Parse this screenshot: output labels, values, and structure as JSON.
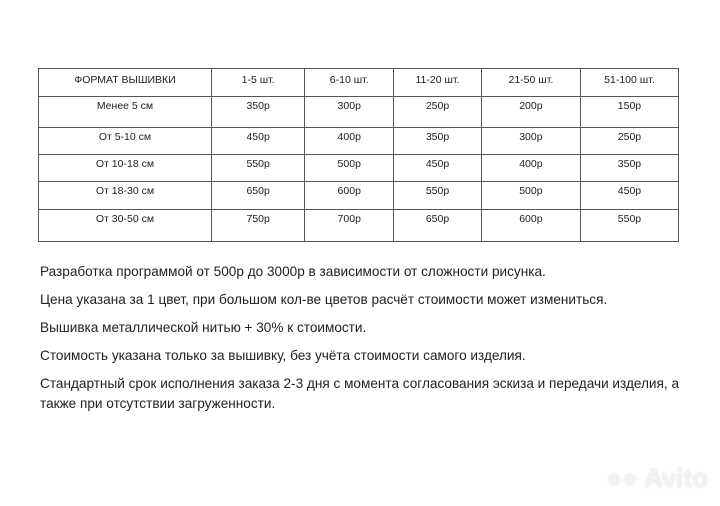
{
  "table": {
    "headers": [
      "ФОРМАТ ВЫШИВКИ",
      "1-5 шт.",
      "6-10 шт.",
      "11-20 шт.",
      "21-50 шт.",
      "51-100 шт."
    ],
    "rows": [
      [
        "Менее 5 см",
        "350р",
        "300р",
        "250р",
        "200р",
        "150р"
      ],
      [
        "От 5-10 см",
        "450р",
        "400р",
        "350р",
        "300р",
        "250р"
      ],
      [
        "От 10-18 см",
        "550р",
        "500р",
        "450р",
        "400р",
        "350р"
      ],
      [
        "От 18-30 см",
        "650р",
        "600р",
        "550р",
        "500р",
        "450р"
      ],
      [
        "От 30-50 см",
        "750р",
        "700р",
        "650р",
        "600р",
        "550р"
      ]
    ]
  },
  "notes": [
    "Разработка программой от 500р до 3000р в зависимости от сложности рисунка.",
    "Цена указана за 1 цвет, при большом кол-ве цветов расчёт стоимости может измениться.",
    "Вышивка металлической нитью + 30% к стоимости.",
    "Стоимость указана только за вышивку, без учёта стоимости самого изделия.",
    "Стандартный срок исполнения заказа 2-3 дня с момента согласования эскиза и передачи изделия, а также при отсутствии загруженности."
  ],
  "watermark": "Avito"
}
